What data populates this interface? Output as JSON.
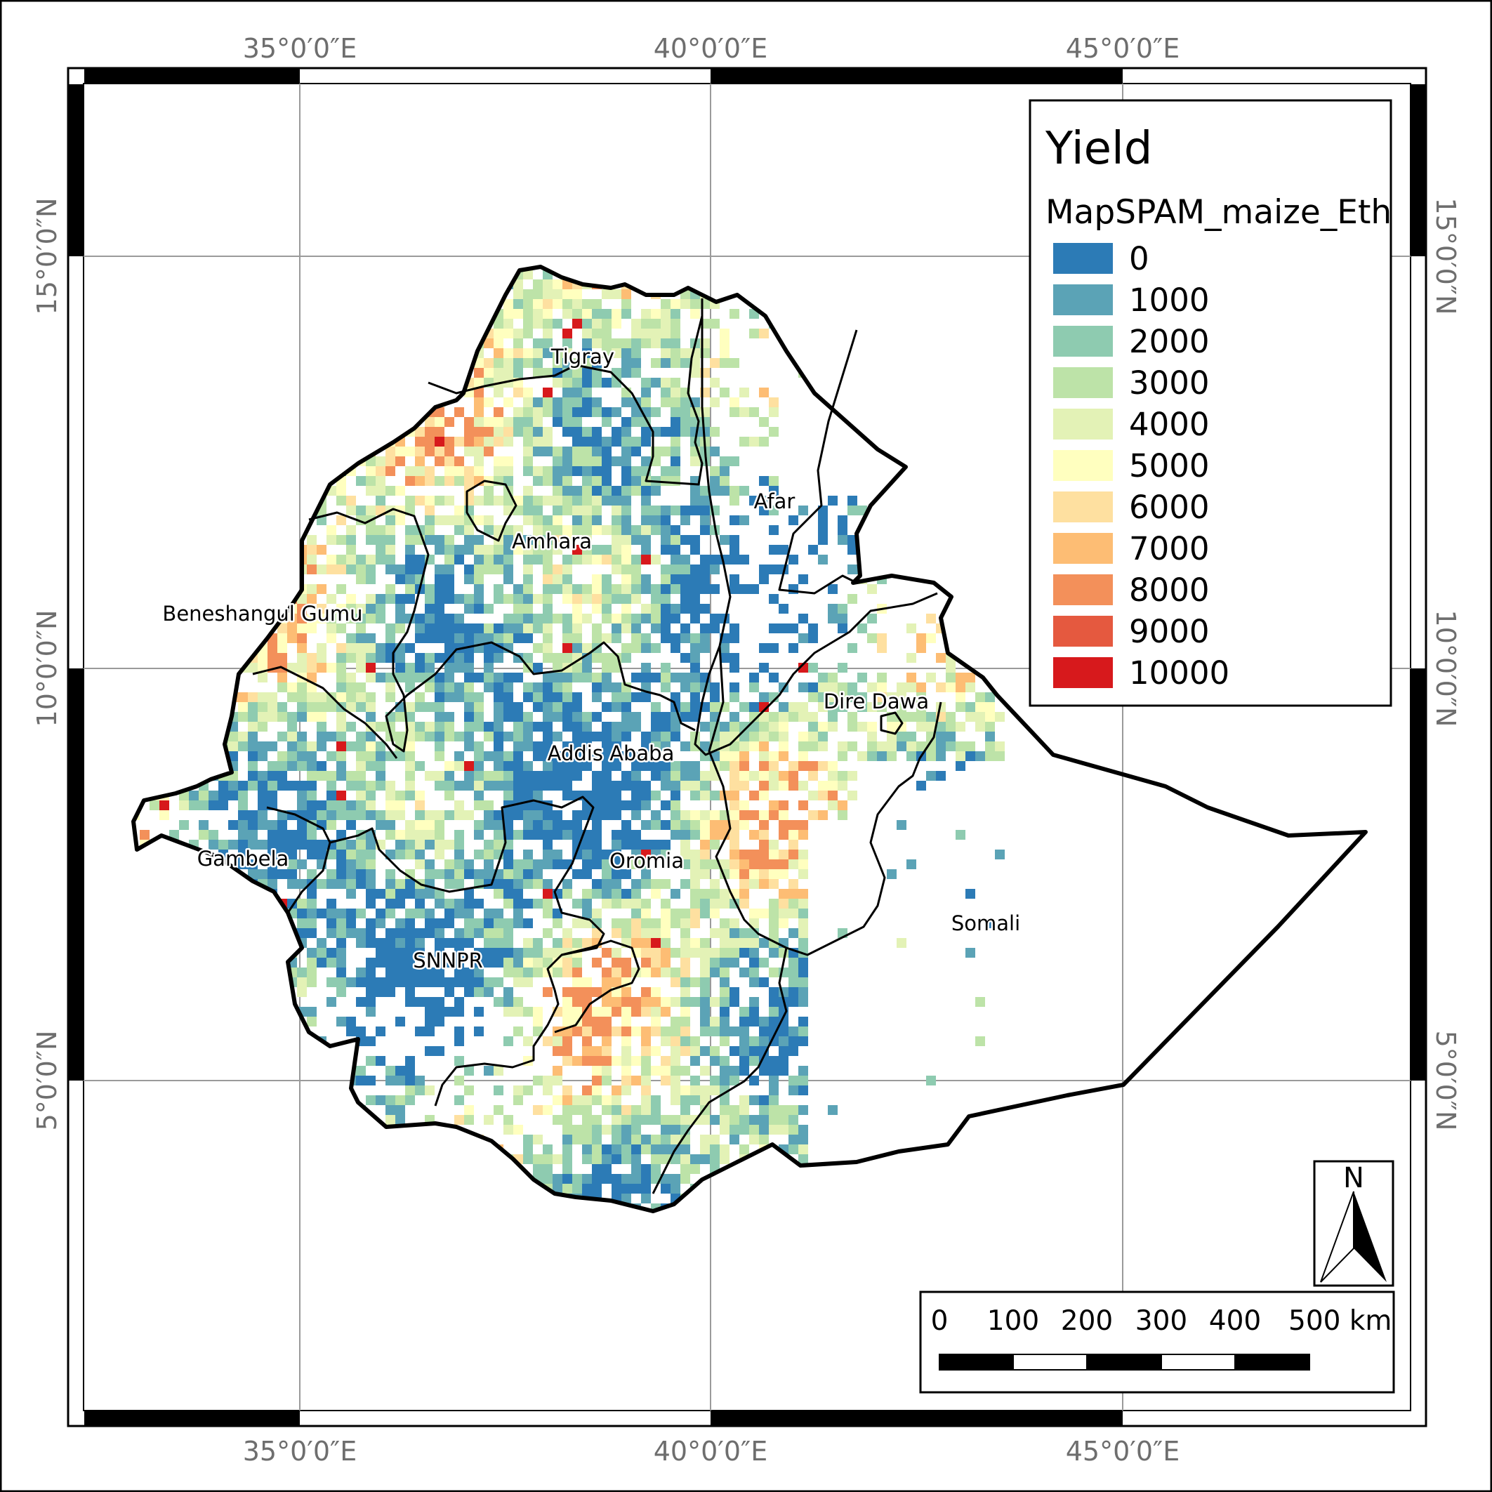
{
  "map": {
    "legend": {
      "title": "Yield",
      "layer": "MapSPAM_maize_Eth",
      "items": [
        {
          "label": "0",
          "color": "#2c7bb6"
        },
        {
          "label": "1000",
          "color": "#5ba3b6"
        },
        {
          "label": "2000",
          "color": "#8ecbb0"
        },
        {
          "label": "3000",
          "color": "#bde3a8"
        },
        {
          "label": "4000",
          "color": "#e3f2b6"
        },
        {
          "label": "5000",
          "color": "#ffffbf"
        },
        {
          "label": "6000",
          "color": "#fee0a0"
        },
        {
          "label": "7000",
          "color": "#fdbd74"
        },
        {
          "label": "8000",
          "color": "#f3905a"
        },
        {
          "label": "9000",
          "color": "#e5593f"
        },
        {
          "label": "10000",
          "color": "#d7191c"
        }
      ]
    },
    "longitude_labels": [
      "35°0′0″E",
      "40°0′0″E",
      "45°0′0″E"
    ],
    "latitude_labels": [
      "15°0′0″N",
      "10°0′0″N",
      "5°0′0″N"
    ],
    "regions": [
      "Tigray",
      "Afar",
      "Amhara",
      "Beneshangul Gumu",
      "Dire Dawa",
      "Addis Ababa",
      "Oromia",
      "Gambela",
      "Somali",
      "SNNPR"
    ],
    "scale_bar": {
      "labels": [
        "0",
        "100",
        "200",
        "300",
        "400",
        "500 km"
      ]
    },
    "north_arrow": {
      "label": "N"
    }
  }
}
